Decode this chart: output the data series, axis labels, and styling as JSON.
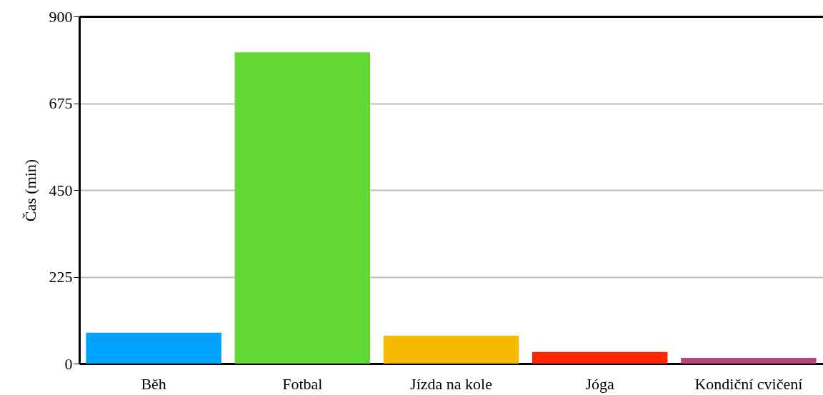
{
  "chart_data": {
    "type": "bar",
    "ylabel": "Čas (min)",
    "categories": [
      "Běh",
      "Fotbal",
      "Jízda na kole",
      "Jóga",
      "Kondiční cvičení"
    ],
    "values": [
      80,
      807,
      72,
      30,
      15
    ],
    "colors": [
      "#00a2ff",
      "#61d836",
      "#f8ba00",
      "#ff2600",
      "#b8467e"
    ],
    "ylim": [
      0,
      900
    ],
    "yticks": [
      0,
      225,
      450,
      675,
      900
    ],
    "grid": "y"
  }
}
